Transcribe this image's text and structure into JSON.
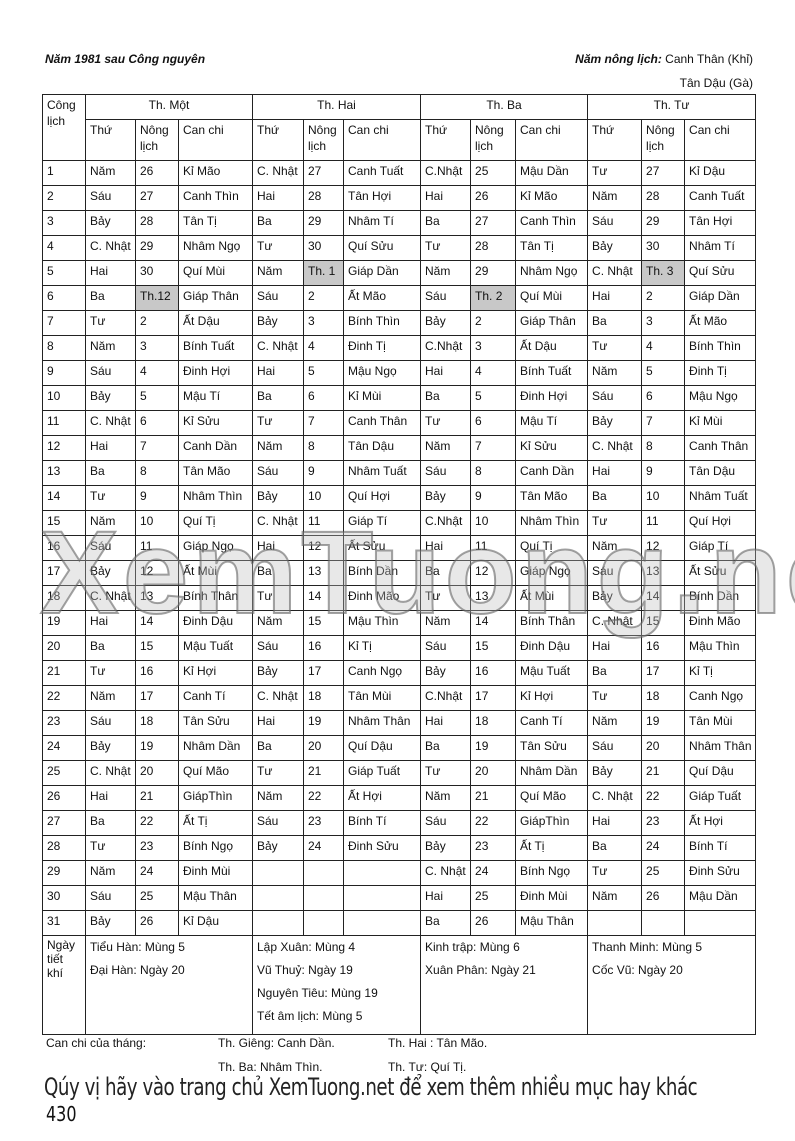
{
  "header": {
    "left": "Năm 1981 sau Công nguyên",
    "right_label": "Năm nông lịch:",
    "right_value": "Canh Thân (Khỉ)",
    "right_line2": "Tân Dậu (Gà)"
  },
  "table": {
    "col_day": "Công lịch",
    "months": [
      "Th. Một",
      "Th. Hai",
      "Th. Ba",
      "Th. Tư"
    ],
    "subcols": [
      "Thứ",
      "Nông lịch",
      "Can chi"
    ],
    "highlight_label_color": "#c8c8c8",
    "rows": [
      {
        "d": "1",
        "m": [
          [
            "Năm",
            "26",
            "Kỉ Mão"
          ],
          [
            "C. Nhật",
            "27",
            "Canh Tuất"
          ],
          [
            "C.Nhật",
            "25",
            "Mậu Dần"
          ],
          [
            "Tư",
            "27",
            "Kỉ Dậu"
          ]
        ]
      },
      {
        "d": "2",
        "m": [
          [
            "Sáu",
            "27",
            "Canh Thìn"
          ],
          [
            "Hai",
            "28",
            "Tân Hợi"
          ],
          [
            "Hai",
            "26",
            "Kỉ Mão"
          ],
          [
            "Năm",
            "28",
            "Canh Tuất"
          ]
        ]
      },
      {
        "d": "3",
        "m": [
          [
            "Bảy",
            "28",
            "Tân Tị"
          ],
          [
            "Ba",
            "29",
            "Nhâm Tí"
          ],
          [
            "Ba",
            "27",
            "Canh Thìn"
          ],
          [
            "Sáu",
            "29",
            "Tân Hợi"
          ]
        ]
      },
      {
        "d": "4",
        "m": [
          [
            "C. Nhật",
            "29",
            "Nhâm Ngọ"
          ],
          [
            "Tư",
            "30",
            "Quí Sửu"
          ],
          [
            "Tư",
            "28",
            "Tân Tị"
          ],
          [
            "Bảy",
            "30",
            "Nhâm Tí"
          ]
        ]
      },
      {
        "d": "5",
        "m": [
          [
            "Hai",
            "30",
            "Quí Mùi"
          ],
          [
            "Năm",
            "Th. 1",
            "Giáp Dần"
          ],
          [
            "Năm",
            "29",
            "Nhâm Ngọ"
          ],
          [
            "C. Nhật",
            "Th. 3",
            "Quí Sửu"
          ]
        ]
      },
      {
        "d": "6",
        "m": [
          [
            "Ba",
            "Th.12",
            "Giáp Thân"
          ],
          [
            "Sáu",
            "2",
            "Ất Mão"
          ],
          [
            "Sáu",
            "Th. 2",
            "Quí Mùi"
          ],
          [
            "Hai",
            "2",
            "Giáp Dần"
          ]
        ]
      },
      {
        "d": "7",
        "m": [
          [
            "Tư",
            "2",
            "Ất Dậu"
          ],
          [
            "Bảy",
            "3",
            "Bính Thìn"
          ],
          [
            "Bảy",
            "2",
            "Giáp Thân"
          ],
          [
            "Ba",
            "3",
            "Ất Mão"
          ]
        ]
      },
      {
        "d": "8",
        "m": [
          [
            "Năm",
            "3",
            "Bính Tuất"
          ],
          [
            "C. Nhật",
            "4",
            "Đinh Tị"
          ],
          [
            "C.Nhật",
            "3",
            "Ất Dậu"
          ],
          [
            "Tư",
            "4",
            "Bính Thìn"
          ]
        ]
      },
      {
        "d": "9",
        "m": [
          [
            "Sáu",
            "4",
            "Đinh Hợi"
          ],
          [
            "Hai",
            "5",
            "Mậu Ngọ"
          ],
          [
            "Hai",
            "4",
            "Bính Tuất"
          ],
          [
            "Năm",
            "5",
            "Đinh Tị"
          ]
        ]
      },
      {
        "d": "10",
        "m": [
          [
            "Bảy",
            "5",
            "Mậu Tí"
          ],
          [
            "Ba",
            "6",
            "Kỉ Mùi"
          ],
          [
            "Ba",
            "5",
            "Đinh Hợi"
          ],
          [
            "Sáu",
            "6",
            "Mậu Ngọ"
          ]
        ]
      },
      {
        "d": "11",
        "m": [
          [
            "C. Nhật",
            "6",
            "Kỉ Sửu"
          ],
          [
            "Tư",
            "7",
            "Canh Thân"
          ],
          [
            "Tư",
            "6",
            "Mậu Tí"
          ],
          [
            "Bảy",
            "7",
            "Kỉ Mùi"
          ]
        ]
      },
      {
        "d": "12",
        "m": [
          [
            "Hai",
            "7",
            "Canh Dần"
          ],
          [
            "Năm",
            "8",
            "Tân Dậu"
          ],
          [
            "Năm",
            "7",
            "Kỉ Sửu"
          ],
          [
            "C. Nhật",
            "8",
            "Canh Thân"
          ]
        ]
      },
      {
        "d": "13",
        "m": [
          [
            "Ba",
            "8",
            "Tân Mão"
          ],
          [
            "Sáu",
            "9",
            "Nhâm Tuất"
          ],
          [
            "Sáu",
            "8",
            "Canh Dần"
          ],
          [
            "Hai",
            "9",
            "Tân Dậu"
          ]
        ]
      },
      {
        "d": "14",
        "m": [
          [
            "Tư",
            "9",
            "Nhâm Thìn"
          ],
          [
            "Bảy",
            "10",
            "Quí Hợi"
          ],
          [
            "Bảy",
            "9",
            "Tân Mão"
          ],
          [
            "Ba",
            "10",
            "Nhâm Tuất"
          ]
        ]
      },
      {
        "d": "15",
        "m": [
          [
            "Năm",
            "10",
            "Quí Tị"
          ],
          [
            "C. Nhật",
            "11",
            "Giáp Tí"
          ],
          [
            "C.Nhật",
            "10",
            "Nhâm Thìn"
          ],
          [
            "Tư",
            "11",
            "Quí Hợi"
          ]
        ]
      },
      {
        "d": "16",
        "m": [
          [
            "Sáu",
            "11",
            "Giáp Ngọ"
          ],
          [
            "Hai",
            "12",
            "Ất Sửu"
          ],
          [
            "Hai",
            "11",
            "Quí Tị"
          ],
          [
            "Năm",
            "12",
            "Giáp Tí"
          ]
        ]
      },
      {
        "d": "17",
        "m": [
          [
            "Bảy",
            "12",
            "Ất Mùi"
          ],
          [
            "Ba",
            "13",
            "Bính Dần"
          ],
          [
            "Ba",
            "12",
            "Giáp Ngọ"
          ],
          [
            "Sáu",
            "13",
            "Ất Sửu"
          ]
        ]
      },
      {
        "d": "18",
        "m": [
          [
            "C. Nhật",
            "13",
            "Bính Thân"
          ],
          [
            "Tư",
            "14",
            "Đinh Mão"
          ],
          [
            "Tư",
            "13",
            "Ất Mùi"
          ],
          [
            "Bảy",
            "14",
            "Bính Dần"
          ]
        ]
      },
      {
        "d": "19",
        "m": [
          [
            "Hai",
            "14",
            "Đinh Dậu"
          ],
          [
            "Năm",
            "15",
            "Mậu Thìn"
          ],
          [
            "Năm",
            "14",
            "Bính Thân"
          ],
          [
            "C. Nhật",
            "15",
            "Đinh Mão"
          ]
        ]
      },
      {
        "d": "20",
        "m": [
          [
            "Ba",
            "15",
            "Mậu Tuất"
          ],
          [
            "Sáu",
            "16",
            "Kỉ Tị"
          ],
          [
            "Sáu",
            "15",
            "Đinh Dậu"
          ],
          [
            "Hai",
            "16",
            "Mậu Thìn"
          ]
        ]
      },
      {
        "d": "21",
        "m": [
          [
            "Tư",
            "16",
            "Kỉ Hợi"
          ],
          [
            "Bảy",
            "17",
            "Canh Ngọ"
          ],
          [
            "Bảy",
            "16",
            "Mậu Tuất"
          ],
          [
            "Ba",
            "17",
            "Kỉ Tị"
          ]
        ]
      },
      {
        "d": "22",
        "m": [
          [
            "Năm",
            "17",
            "Canh Tí"
          ],
          [
            "C. Nhật",
            "18",
            "Tân Mùi"
          ],
          [
            "C.Nhật",
            "17",
            "Kỉ Hợi"
          ],
          [
            "Tư",
            "18",
            "Canh Ngọ"
          ]
        ]
      },
      {
        "d": "23",
        "m": [
          [
            "Sáu",
            "18",
            "Tân Sửu"
          ],
          [
            "Hai",
            "19",
            "Nhâm Thân"
          ],
          [
            "Hai",
            "18",
            "Canh Tí"
          ],
          [
            "Năm",
            "19",
            "Tân Mùi"
          ]
        ]
      },
      {
        "d": "24",
        "m": [
          [
            "Bảy",
            "19",
            "Nhâm Dần"
          ],
          [
            "Ba",
            "20",
            "Quí Dậu"
          ],
          [
            "Ba",
            "19",
            "Tân Sửu"
          ],
          [
            "Sáu",
            "20",
            "Nhâm Thân"
          ]
        ]
      },
      {
        "d": "25",
        "m": [
          [
            "C. Nhật",
            "20",
            "Quí Mão"
          ],
          [
            "Tư",
            "21",
            "Giáp Tuất"
          ],
          [
            "Tư",
            "20",
            "Nhâm Dần"
          ],
          [
            "Bảy",
            "21",
            "Quí Dậu"
          ]
        ]
      },
      {
        "d": "26",
        "m": [
          [
            "Hai",
            "21",
            "GiápThìn"
          ],
          [
            "Năm",
            "22",
            "Ất Hợi"
          ],
          [
            "Năm",
            "21",
            "Quí Mão"
          ],
          [
            "C. Nhật",
            "22",
            "Giáp Tuất"
          ]
        ]
      },
      {
        "d": "27",
        "m": [
          [
            "Ba",
            "22",
            "Ất Tị"
          ],
          [
            "Sáu",
            "23",
            "Bính Tí"
          ],
          [
            "Sáu",
            "22",
            "GiápThìn"
          ],
          [
            "Hai",
            "23",
            "Ất Hợi"
          ]
        ]
      },
      {
        "d": "28",
        "m": [
          [
            "Tư",
            "23",
            "Bính Ngọ"
          ],
          [
            "Bảy",
            "24",
            "Đinh Sửu"
          ],
          [
            "Bảy",
            "23",
            "Ất Tị"
          ],
          [
            "Ba",
            "24",
            "Bính Tí"
          ]
        ]
      },
      {
        "d": "29",
        "m": [
          [
            "Năm",
            "24",
            "Đinh Mùi"
          ],
          [
            "",
            "",
            ""
          ],
          [
            "C. Nhật",
            "24",
            "Bính Ngọ"
          ],
          [
            "Tư",
            "25",
            "Đinh Sửu"
          ]
        ]
      },
      {
        "d": "30",
        "m": [
          [
            "Sáu",
            "25",
            "Mậu Thân"
          ],
          [
            "",
            "",
            ""
          ],
          [
            "Hai",
            "25",
            "Đinh Mùi"
          ],
          [
            "Năm",
            "26",
            "Mậu Dần"
          ]
        ]
      },
      {
        "d": "31",
        "m": [
          [
            "Bảy",
            "26",
            "Kỉ Dậu"
          ],
          [
            "",
            "",
            ""
          ],
          [
            "Ba",
            "26",
            "Mậu Thân"
          ],
          [
            "",
            "",
            ""
          ]
        ]
      }
    ],
    "tiet_khi_label": "Ngày tiết khí",
    "tiet_khi": [
      [
        "Tiểu Hàn: Mùng 5",
        "Đại Hàn: Ngày 20"
      ],
      [
        "Lập Xuân: Mùng 4",
        "Vũ Thuỷ: Ngày 19",
        "Nguyên Tiêu: Mùng 19",
        "Tết âm lịch: Mùng 5"
      ],
      [
        "Kinh trập: Mùng 6",
        "Xuân Phân: Ngày 21"
      ],
      [
        "Thanh Minh: Mùng 5",
        "Cốc Vũ: Ngày 20"
      ]
    ]
  },
  "footer": {
    "label": "Can chi của tháng:",
    "gieng": "Th. Giêng: Canh Dần.",
    "hai": "Th. Hai : Tân Mão.",
    "ba": "Th. Ba: Nhâm Thìn.",
    "tu": "Th. Tư: Quí Tị."
  },
  "ad_text": "Qúy vị hãy vào trang chủ XemTuong.net để xem thêm nhiều mục hay khác",
  "page_number": "430",
  "watermark": "XemTuong.net"
}
